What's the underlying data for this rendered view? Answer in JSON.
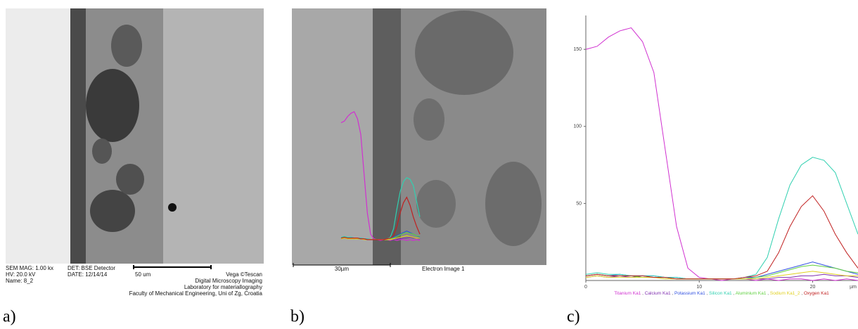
{
  "panel_labels": [
    "a)",
    "b)",
    "c)"
  ],
  "panel_a": {
    "info": [
      "SEM MAG: 1.00 kx",
      "HV:  20.0 kV",
      "Name: 8_2",
      "DET: BSE Detector",
      "DATE: 12/14/14",
      "50 um",
      "Vega ©Tescan",
      "Digital Microscopy Imaging",
      "Laboratory for materiallography",
      "Faculty of Mechanical Engineering, Uni of Zg, Croatia"
    ]
  },
  "panel_b": {
    "scale": "30µm",
    "caption": "Electron Image 1"
  },
  "chart_data": {
    "type": "line",
    "x_label": "µm",
    "x": [
      0,
      1,
      2,
      3,
      4,
      5,
      6,
      7,
      8,
      9,
      10,
      11,
      12,
      13,
      14,
      15,
      16,
      17,
      18,
      19,
      20,
      21,
      22,
      23,
      24
    ],
    "xlim": [
      0,
      24
    ],
    "xticks": [
      0,
      10,
      20
    ],
    "ylim": [
      0,
      172
    ],
    "yticks": [
      50,
      100,
      150
    ],
    "series": [
      {
        "name": "Titanium Ka1",
        "color": "#d030d0",
        "values": [
          150,
          152,
          158,
          162,
          164,
          155,
          135,
          85,
          35,
          8,
          2,
          1,
          0,
          1,
          1,
          0,
          1,
          0,
          1,
          1,
          0,
          1,
          0,
          1,
          0
        ]
      },
      {
        "name": "Calcium Ka1",
        "color": "#8030b0",
        "values": [
          2,
          3,
          2,
          3,
          2,
          3,
          2,
          2,
          1,
          1,
          1,
          1,
          1,
          1,
          1,
          1,
          1,
          2,
          2,
          3,
          3,
          4,
          3,
          3,
          2
        ]
      },
      {
        "name": "Potassium Ka1",
        "color": "#3050e0",
        "values": [
          3,
          4,
          3,
          4,
          3,
          3,
          3,
          2,
          2,
          1,
          1,
          1,
          1,
          1,
          2,
          2,
          4,
          6,
          8,
          10,
          12,
          10,
          8,
          6,
          4
        ]
      },
      {
        "name": "Silicon Ka1",
        "color": "#30d0b0",
        "values": [
          4,
          5,
          4,
          4,
          3,
          3,
          3,
          2,
          2,
          1,
          1,
          1,
          1,
          1,
          2,
          4,
          15,
          40,
          62,
          75,
          80,
          78,
          70,
          50,
          30
        ]
      },
      {
        "name": "Aluminium Ka1",
        "color": "#60d040",
        "values": [
          3,
          4,
          3,
          3,
          3,
          2,
          2,
          2,
          1,
          1,
          1,
          1,
          1,
          1,
          1,
          2,
          3,
          5,
          7,
          9,
          10,
          9,
          8,
          6,
          5
        ]
      },
      {
        "name": "Sodium Ka1_2",
        "color": "#e0d020",
        "values": [
          2,
          3,
          2,
          2,
          2,
          2,
          2,
          1,
          1,
          1,
          1,
          1,
          1,
          1,
          1,
          1,
          2,
          3,
          4,
          5,
          6,
          5,
          4,
          3,
          3
        ]
      },
      {
        "name": "Oxygen Ka1",
        "color": "#c02020",
        "values": [
          3,
          4,
          3,
          3,
          3,
          3,
          2,
          2,
          1,
          1,
          1,
          1,
          1,
          1,
          2,
          3,
          6,
          18,
          35,
          48,
          55,
          45,
          30,
          18,
          8
        ]
      }
    ]
  }
}
